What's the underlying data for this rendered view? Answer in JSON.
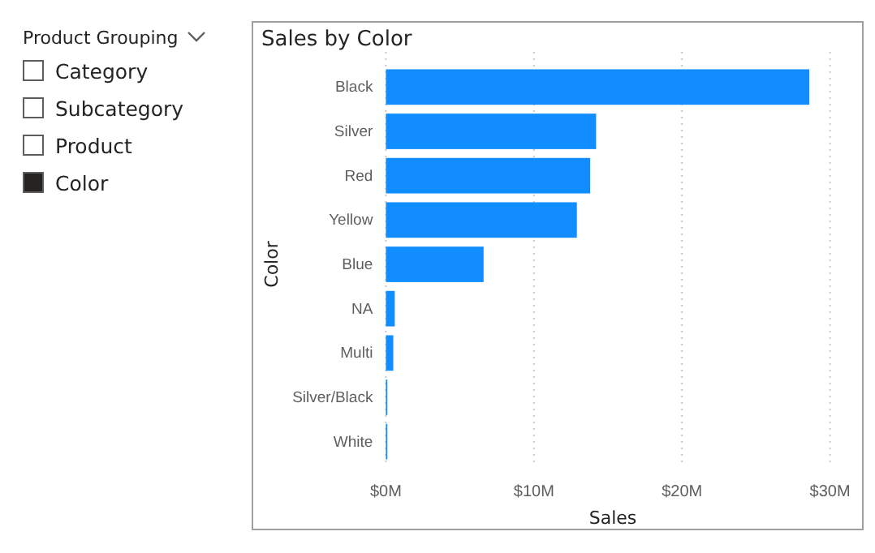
{
  "chart_data": [
    {
      "type": "other",
      "title": "Product Grouping",
      "annotations": [
        "Category",
        "Subcategory",
        "Product",
        "Color"
      ]
    },
    {
      "type": "bar",
      "title": "Sales by Color",
      "orientation": "horizontal",
      "xlabel": "Sales",
      "ylabel": "Color",
      "categories": [
        "Black",
        "Silver",
        "Red",
        "Yellow",
        "Blue",
        "NA",
        "Multi",
        "Silver/Black",
        "White"
      ],
      "values": [
        28.6,
        14.2,
        13.8,
        12.9,
        6.6,
        0.6,
        0.5,
        0.1,
        0.1
      ],
      "color": "#118dff",
      "xlim": [
        0,
        30
      ],
      "xticks": [
        {
          "value": 0,
          "label": "$0M"
        },
        {
          "value": 10,
          "label": "$10M"
        },
        {
          "value": 20,
          "label": "$20M"
        },
        {
          "value": 30,
          "label": "$30M"
        }
      ],
      "grid": "x"
    }
  ]
}
